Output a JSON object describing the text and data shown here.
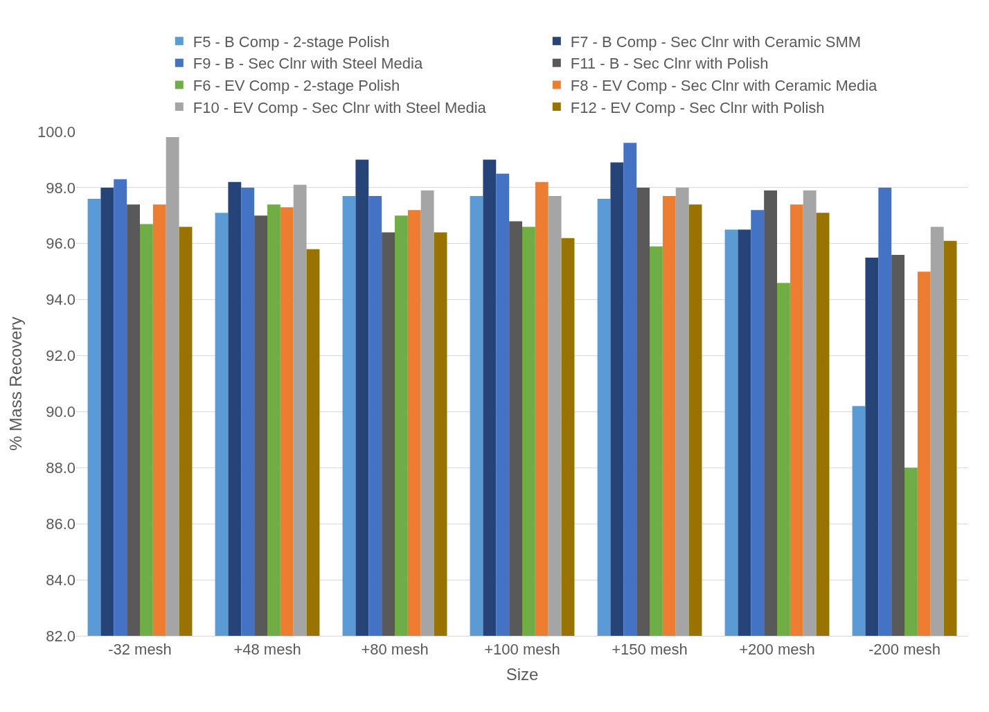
{
  "chart_data": {
    "type": "bar",
    "xlabel": "Size",
    "ylabel": "% Mass Recovery",
    "categories": [
      "-32 mesh",
      "+48 mesh",
      "+80 mesh",
      "+100 mesh",
      "+150 mesh",
      "+200 mesh",
      "-200 mesh"
    ],
    "series": [
      {
        "name": "F5 - B Comp - 2-stage Polish",
        "color": "#5b9bd5",
        "values": [
          97.6,
          97.1,
          97.7,
          97.7,
          97.6,
          96.5,
          90.2
        ]
      },
      {
        "name": "F7 - B Comp - Sec Clnr with Ceramic SMM",
        "color": "#264478",
        "values": [
          98.0,
          98.2,
          99.0,
          99.0,
          98.9,
          96.5,
          95.5
        ]
      },
      {
        "name": "F9 - B - Sec Clnr with Steel Media",
        "color": "#4472c4",
        "values": [
          98.3,
          98.0,
          97.7,
          98.5,
          99.6,
          97.2,
          98.0
        ]
      },
      {
        "name": "F11 - B - Sec Clnr with Polish",
        "color": "#595959",
        "values": [
          97.4,
          97.0,
          96.4,
          96.8,
          98.0,
          97.9,
          95.6
        ]
      },
      {
        "name": "F6 - EV Comp - 2-stage Polish",
        "color": "#70ad47",
        "values": [
          96.7,
          97.4,
          97.0,
          96.6,
          95.9,
          94.6,
          88.0
        ]
      },
      {
        "name": "F8 - EV Comp - Sec Clnr with Ceramic Media",
        "color": "#ed7d31",
        "values": [
          97.4,
          97.3,
          97.2,
          98.2,
          97.7,
          97.4,
          95.0
        ]
      },
      {
        "name": "F10 - EV Comp - Sec Clnr with Steel Media",
        "color": "#a5a5a5",
        "values": [
          99.8,
          98.1,
          97.9,
          97.7,
          98.0,
          97.9,
          96.6
        ]
      },
      {
        "name": "F12 - EV Comp - Sec Clnr with Polish",
        "color": "#997300",
        "values": [
          96.6,
          95.8,
          96.4,
          96.2,
          97.4,
          97.1,
          96.1
        ]
      }
    ],
    "ylim": [
      82,
      100
    ],
    "yticks": [
      {
        "value": 82,
        "label": "82.0"
      },
      {
        "value": 84,
        "label": "84.0"
      },
      {
        "value": 86,
        "label": "86.0"
      },
      {
        "value": 88,
        "label": "88.0"
      },
      {
        "value": 90,
        "label": "90.0"
      },
      {
        "value": 92,
        "label": "92.0"
      },
      {
        "value": 94,
        "label": "94.0"
      },
      {
        "value": 96,
        "label": "96.0"
      },
      {
        "value": 98,
        "label": "98.0"
      },
      {
        "value": 100,
        "label": "100.0"
      }
    ],
    "grid": "y",
    "legend": "top"
  }
}
